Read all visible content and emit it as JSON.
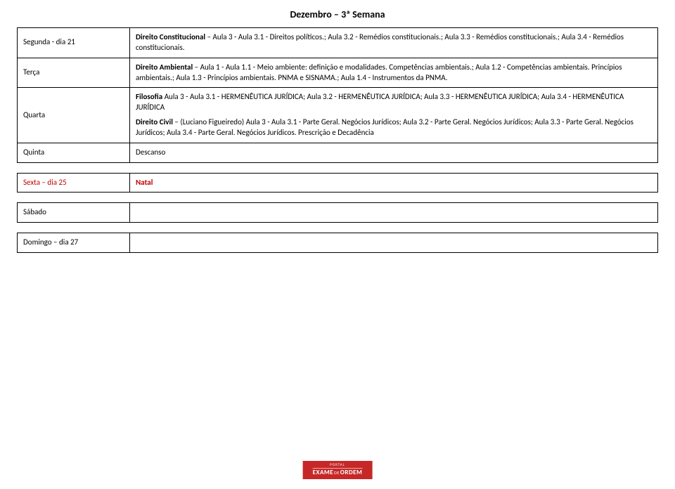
{
  "title": "Dezembro – 3ª Semana",
  "rows": {
    "segunda": {
      "day": "Segunda - dia 21",
      "subject": "Direito Constitucional",
      "text": " – Aula 3 - Aula 3.1 - Direitos políticos.; Aula 3.2 - Remédios constitucionais.; Aula 3.3 - Remédios constitucionais.; Aula 3.4 - Remédios constitucionais."
    },
    "terca": {
      "day": "Terça",
      "subject": "Direito Ambiental",
      "text": " – Aula 1 - Aula 1.1 - Meio ambiente: definição e modalidades. Competências ambientais.; Aula 1.2 - Competências ambientais. Princípios ambientais.; Aula 1.3 - Princípios ambientais. PNMA e SISNAMA.; Aula 1.4 - Instrumentos da PNMA."
    },
    "quarta": {
      "day": "Quarta",
      "subject1": "Filosofia",
      "text1": " Aula 3 - Aula 3.1 - HERMENÊUTICA JURÍDICA; Aula 3.2 - HERMENÊUTICA JURÍDICA; Aula 3.3 - HERMENÊUTICA JURÍDICA; Aula 3.4 - HERMENÊUTICA JURÍDICA",
      "subject2": "Direito Civil",
      "text2": " – (Luciano Figueiredo) Aula 3 - Aula 3.1 - Parte Geral. Negócios Jurídicos; Aula 3.2 - Parte Geral. Negócios Jurídicos; Aula 3.3 - Parte Geral. Negócios Jurídicos; Aula 3.4 - Parte Geral. Negócios Jurídicos. Prescrição e Decadência"
    },
    "quinta": {
      "day": "Quinta",
      "text": "Descanso"
    },
    "sexta": {
      "day": "Sexta – dia 25",
      "text": "Natal"
    },
    "sabado": {
      "day": "Sábado"
    },
    "domingo": {
      "day": "Domingo – dia 27"
    }
  },
  "logo": {
    "top": "PORTAL",
    "line2a": "EXAME",
    "line2b": "DE",
    "line2c": "ORDEM"
  },
  "colors": {
    "red": "#c00000",
    "logo_bg": "#c62828",
    "border": "#000000"
  }
}
